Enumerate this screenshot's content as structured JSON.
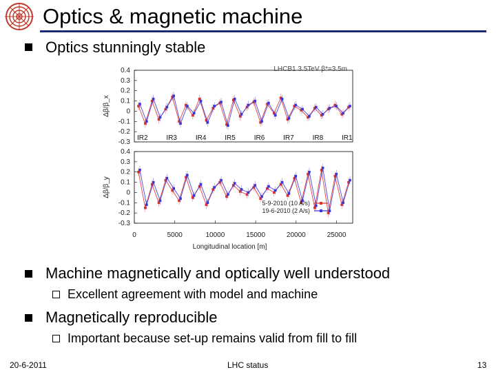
{
  "slide": {
    "title": "Optics & magnetic machine",
    "bullets": [
      {
        "text": "Optics stunningly stable"
      },
      {
        "text": "Machine magnetically and optically well understood",
        "sub": [
          "Excellent agreement with model and machine"
        ]
      },
      {
        "text": "Magnetically reproducible",
        "sub": [
          "Important because set-up remains valid from fill to fill"
        ]
      }
    ],
    "footer": {
      "date": "20-6-2011",
      "center": "LHC status",
      "page": "13"
    }
  },
  "logo": {
    "icon": "lhc-ring-logo-icon",
    "color": "#c0392b"
  },
  "colors": {
    "title_rule": "#1a2a78",
    "series1": "#e0302a",
    "series2": "#3838d8"
  },
  "chart_data": [
    {
      "type": "scatter",
      "title": "LHCB1 3.5TeV  β*=3.5m",
      "ylabel": "Δβ/β_x",
      "xlabel": "",
      "ylim": [
        -0.3,
        0.4
      ],
      "yticks": [
        "0.4",
        "0.3",
        "0.2",
        "0.1",
        "0",
        "-0.1",
        "-0.2",
        "-0.3"
      ],
      "ir_labels": [
        "IR2",
        "IR3",
        "IR4",
        "IR5",
        "IR6",
        "IR7",
        "IR8",
        "IR1"
      ],
      "series": [
        {
          "name": "5-9-2010 (10 A/s)",
          "color": "#e0302a",
          "values": [
            0.05,
            -0.12,
            0.1,
            -0.08,
            0.02,
            0.14,
            -0.1,
            0.06,
            -0.04,
            0.12,
            -0.09,
            0.03,
            0.08,
            -0.13,
            0.11,
            -0.05,
            0.04,
            0.09,
            -0.11,
            0.07,
            -0.02,
            0.13,
            -0.08,
            0.05,
            0.01,
            -0.06,
            0.03,
            -0.04,
            0.02,
            0.06,
            -0.03,
            0.04
          ]
        },
        {
          "name": "19-6-2010 (2 A/s)",
          "color": "#3838d8",
          "values": [
            0.07,
            -0.1,
            0.12,
            -0.06,
            0.04,
            0.15,
            -0.12,
            0.05,
            -0.02,
            0.1,
            -0.11,
            0.05,
            0.09,
            -0.14,
            0.12,
            -0.03,
            0.06,
            0.1,
            -0.1,
            0.08,
            -0.04,
            0.12,
            -0.07,
            0.06,
            0.02,
            -0.05,
            0.04,
            -0.03,
            0.03,
            0.05,
            -0.02,
            0.05
          ]
        }
      ]
    },
    {
      "type": "scatter",
      "title": "",
      "ylabel": "Δβ/β_y",
      "xlabel": "Longitudinal location [m]",
      "ylim": [
        -0.3,
        0.4
      ],
      "xlim": [
        0,
        27000
      ],
      "yticks": [
        "0.4",
        "0.3",
        "0.2",
        "0.1",
        "0",
        "-0.1",
        "-0.2",
        "-0.3"
      ],
      "xticks": [
        "0",
        "5000",
        "10000",
        "15000",
        "20000",
        "25000"
      ],
      "legend": [
        "5-9-2010 (10 A/s)",
        "19-6-2010 (2 A/s)"
      ],
      "series": [
        {
          "name": "5-9-2010 (10 A/s)",
          "color": "#e0302a",
          "values": [
            0.2,
            -0.15,
            0.08,
            -0.1,
            0.12,
            0.02,
            -0.08,
            0.15,
            -0.05,
            0.06,
            -0.12,
            0.03,
            0.1,
            -0.04,
            0.07,
            0.01,
            -0.02,
            0.05,
            -0.06,
            0.04,
            0.0,
            0.08,
            -0.03,
            0.14,
            -0.1,
            0.18,
            -0.15,
            0.22,
            -0.2,
            0.16,
            -0.12,
            0.1
          ]
        },
        {
          "name": "19-6-2010 (2 A/s)",
          "color": "#3838d8",
          "values": [
            0.22,
            -0.12,
            0.1,
            -0.08,
            0.14,
            0.04,
            -0.06,
            0.17,
            -0.03,
            0.08,
            -0.1,
            0.05,
            0.12,
            -0.02,
            0.09,
            0.03,
            0.0,
            0.07,
            -0.04,
            0.06,
            0.02,
            0.1,
            -0.01,
            0.16,
            -0.08,
            0.2,
            -0.13,
            0.24,
            -0.18,
            0.18,
            -0.1,
            0.12
          ]
        }
      ]
    }
  ]
}
